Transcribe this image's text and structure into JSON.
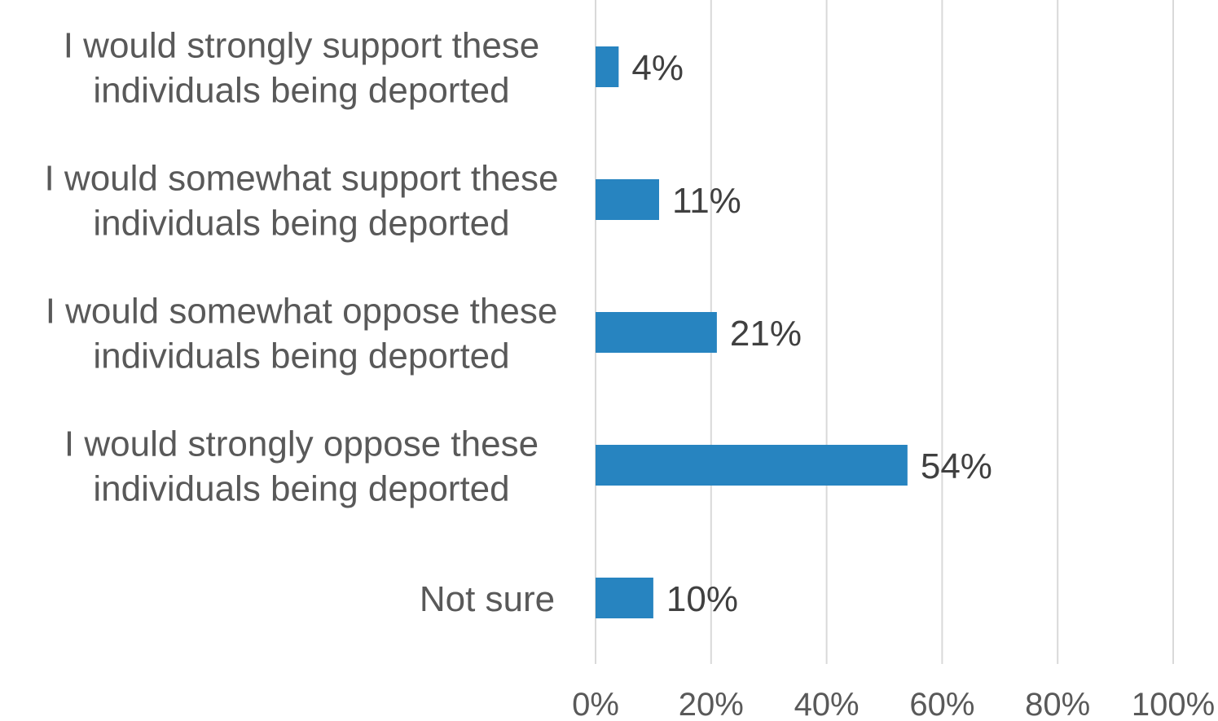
{
  "chart_data": {
    "type": "bar",
    "orientation": "horizontal",
    "categories": [
      [
        "I would strongly support these",
        "individuals being deported"
      ],
      [
        "I would somewhat support these",
        "individuals being deported"
      ],
      [
        "I would somewhat oppose these",
        "individuals being deported"
      ],
      [
        "I would strongly oppose these",
        "individuals being deported"
      ],
      [
        "Not sure"
      ]
    ],
    "values": [
      4,
      11,
      21,
      54,
      10
    ],
    "data_labels": [
      "4%",
      "11%",
      "21%",
      "54%",
      "10%"
    ],
    "xlim": [
      0,
      100
    ],
    "x_ticks": [
      0,
      20,
      40,
      60,
      80,
      100
    ],
    "x_tick_labels": [
      "0%",
      "20%",
      "40%",
      "60%",
      "80%",
      "100%"
    ],
    "grid": true,
    "legend": "none",
    "bar_color": "#2784c0",
    "title": "",
    "xlabel": "",
    "ylabel": ""
  }
}
